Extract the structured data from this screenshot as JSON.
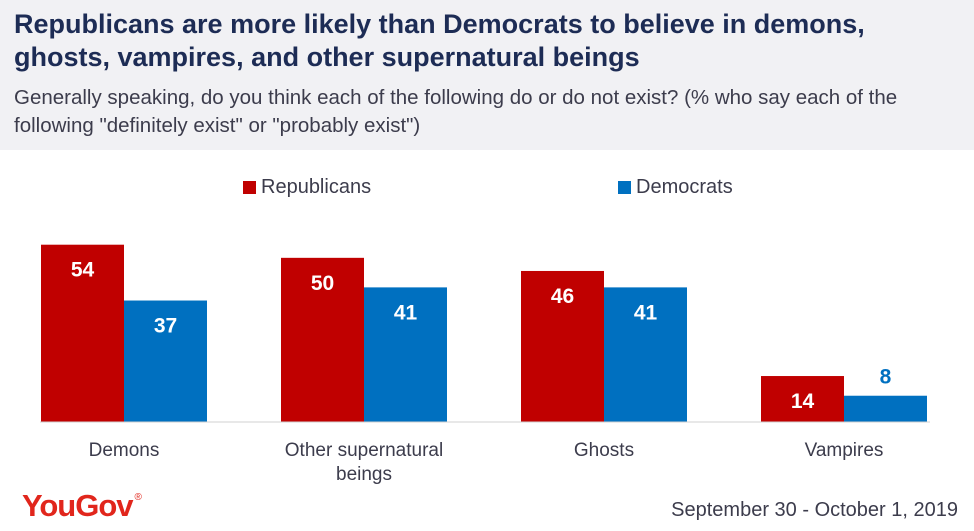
{
  "header": {
    "title": "Republicans are more likely than Democrats to believe in demons, ghosts, vampires, and other supernatural beings",
    "subtitle": "Generally speaking, do you think each of the following do or do not exist? (% who say each of the following \"definitely exist\" or \"probably exist\")"
  },
  "footer": {
    "logo": "YouGov",
    "logo_mark": "®",
    "date": "September 30 - October 1, 2019"
  },
  "colors": {
    "republicans": "#c00000",
    "democrats": "#0070c0"
  },
  "chart_data": {
    "type": "bar",
    "categories": [
      "Demons",
      "Other supernatural beings",
      "Ghosts",
      "Vampires"
    ],
    "series": [
      {
        "name": "Republicans",
        "values": [
          54,
          50,
          46,
          14
        ]
      },
      {
        "name": "Democrats",
        "values": [
          37,
          41,
          41,
          8
        ]
      }
    ],
    "ylim": [
      0,
      60
    ],
    "grid": false,
    "legend": "top-center",
    "data_labels": true
  }
}
